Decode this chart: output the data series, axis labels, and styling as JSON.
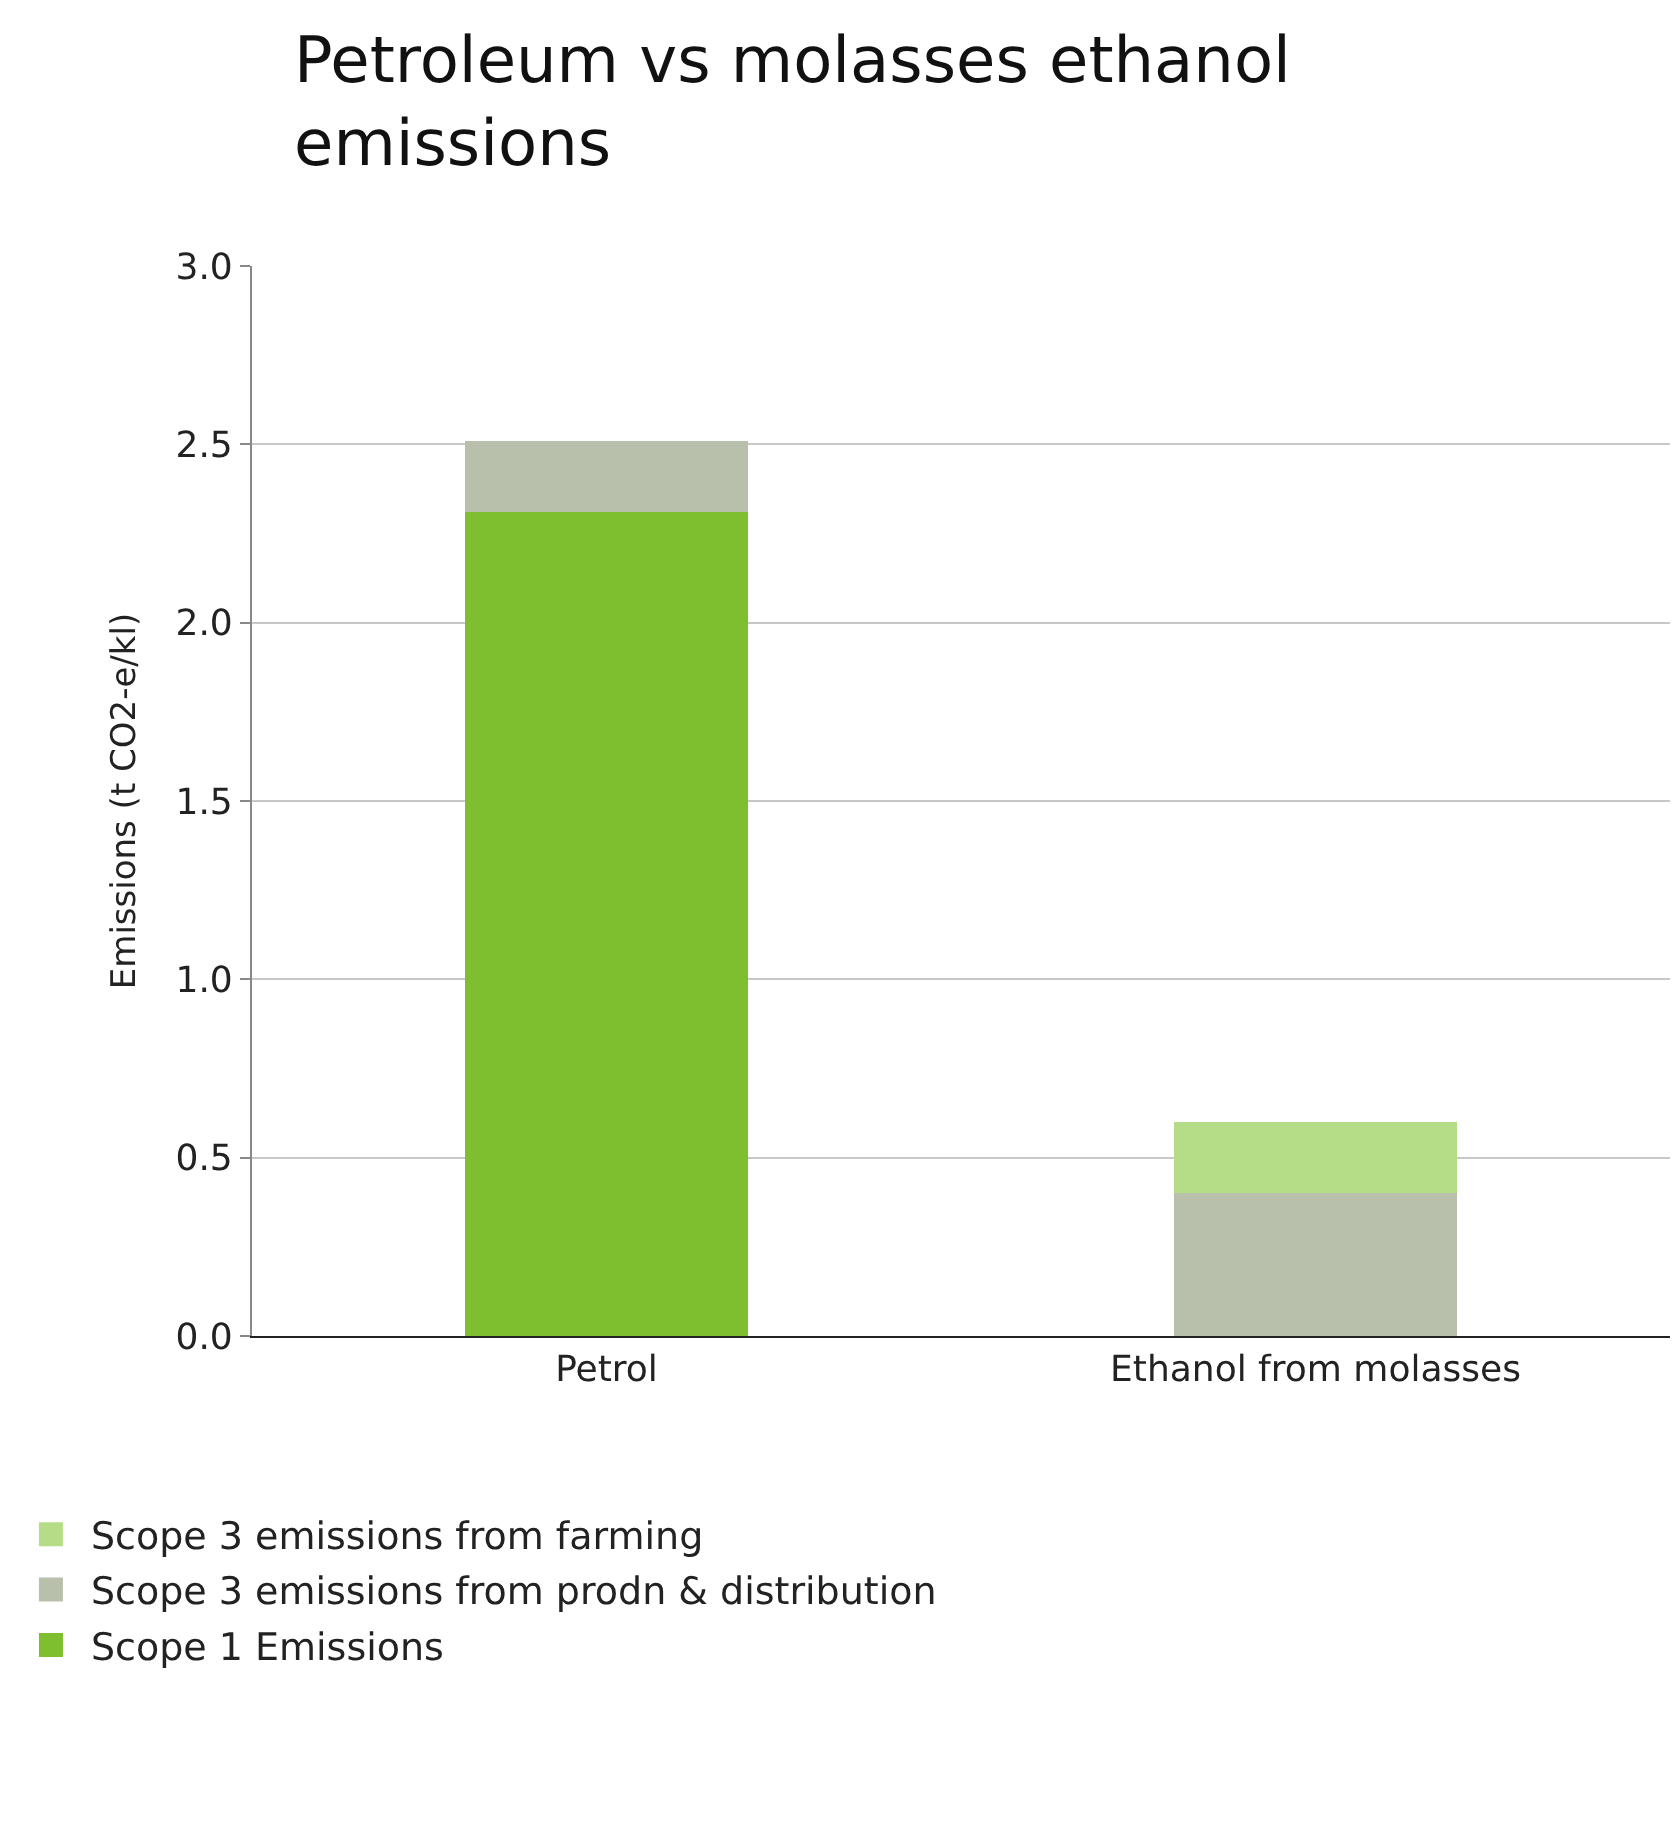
{
  "chart_data": {
    "type": "bar",
    "title": "Petroleum vs molasses ethanol emissions",
    "ylabel": "Emissions (t CO2-e/kl)",
    "categories": [
      "Petrol",
      "Ethanol from molasses"
    ],
    "stacked": true,
    "series": [
      {
        "name": "Scope 1 Emissions",
        "color": "#7dbf2e",
        "values": [
          2.31,
          0
        ]
      },
      {
        "name": "Scope 3 emissions from prodn & distribution",
        "color": "#b8c0ac",
        "values": [
          0.2,
          0.4
        ]
      },
      {
        "name": "Scope 3 emissions from farming",
        "color": "#b5dd88",
        "values": [
          0,
          0.2
        ]
      }
    ],
    "ylim": [
      0,
      3.0
    ],
    "yticks": [
      {
        "value": 0,
        "label": "0.0"
      },
      {
        "value": 0.5,
        "label": "0.5"
      },
      {
        "value": 1,
        "label": "1.0"
      },
      {
        "value": 1.5,
        "label": "1.5"
      },
      {
        "value": 2,
        "label": "2.0"
      },
      {
        "value": 2.5,
        "label": "2.5"
      },
      {
        "value": 3,
        "label": "3.0"
      }
    ],
    "grid": "y",
    "legend": "bottom"
  }
}
